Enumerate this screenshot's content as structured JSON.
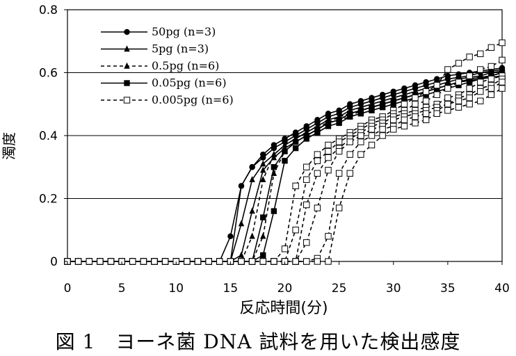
{
  "chart_data": {
    "type": "line",
    "title": "",
    "xlabel": "反応時間(分)",
    "ylabel": "濁度",
    "xlim": [
      0,
      40
    ],
    "ylim": [
      0,
      0.8
    ],
    "xticks": [
      0,
      5,
      10,
      15,
      20,
      25,
      30,
      35,
      40
    ],
    "yticks": [
      0,
      0.2,
      0.4,
      0.6,
      0.8
    ],
    "ytick_labels": [
      "0",
      "0.2",
      "0.4",
      "0.6",
      "0.8"
    ],
    "grid": "horizontal",
    "x_step": 1,
    "legend_position": "top-left",
    "series": [
      {
        "name": "50pg (n=3)",
        "marker": "circle",
        "line_style": "solid",
        "curves": [
          [
            0,
            0,
            0,
            0,
            0,
            0,
            0,
            0,
            0,
            0,
            0,
            0,
            0,
            0,
            0,
            0,
            0.24,
            0.3,
            0.34,
            0.37,
            0.39,
            0.41,
            0.43,
            0.45,
            0.47,
            0.48,
            0.5,
            0.51,
            0.52,
            0.53,
            0.54,
            0.55,
            0.56,
            0.57,
            0.58,
            0.59,
            0.595,
            0.6,
            0.605,
            0.61,
            0.615
          ],
          [
            0,
            0,
            0,
            0,
            0,
            0,
            0,
            0,
            0,
            0,
            0,
            0,
            0,
            0,
            0,
            0.08,
            0.24,
            0.3,
            0.33,
            0.36,
            0.38,
            0.4,
            0.42,
            0.44,
            0.46,
            0.47,
            0.49,
            0.5,
            0.51,
            0.52,
            0.53,
            0.54,
            0.55,
            0.56,
            0.57,
            0.58,
            0.585,
            0.59,
            0.6,
            0.605,
            0.61
          ]
        ]
      },
      {
        "name": "5pg (n=3)",
        "marker": "triangle",
        "line_style": "solid",
        "curves": [
          [
            0,
            0,
            0,
            0,
            0,
            0,
            0,
            0,
            0,
            0,
            0,
            0,
            0,
            0,
            0,
            0,
            0.12,
            0.26,
            0.31,
            0.34,
            0.37,
            0.39,
            0.41,
            0.43,
            0.45,
            0.46,
            0.48,
            0.49,
            0.5,
            0.51,
            0.52,
            0.53,
            0.54,
            0.55,
            0.56,
            0.57,
            0.58,
            0.585,
            0.59,
            0.6,
            0.605
          ],
          [
            0,
            0,
            0,
            0,
            0,
            0,
            0,
            0,
            0,
            0,
            0,
            0,
            0,
            0,
            0,
            0,
            0.02,
            0.16,
            0.29,
            0.33,
            0.36,
            0.38,
            0.4,
            0.42,
            0.44,
            0.45,
            0.47,
            0.48,
            0.49,
            0.5,
            0.51,
            0.52,
            0.53,
            0.54,
            0.55,
            0.56,
            0.57,
            0.58,
            0.585,
            0.59,
            0.6
          ]
        ]
      },
      {
        "name": "0.5pg (n=6)",
        "marker": "triangle",
        "line_style": "dashed",
        "curves": [
          [
            0,
            0,
            0,
            0,
            0,
            0,
            0,
            0,
            0,
            0,
            0,
            0,
            0,
            0,
            0,
            0,
            0,
            0.08,
            0.26,
            0.34,
            0.37,
            0.39,
            0.41,
            0.43,
            0.44,
            0.46,
            0.47,
            0.48,
            0.49,
            0.5,
            0.51,
            0.52,
            0.53,
            0.54,
            0.55,
            0.56,
            0.57,
            0.58,
            0.585,
            0.59,
            0.6
          ],
          [
            0,
            0,
            0,
            0,
            0,
            0,
            0,
            0,
            0,
            0,
            0,
            0,
            0,
            0,
            0,
            0,
            0,
            0,
            0.08,
            0.28,
            0.35,
            0.38,
            0.4,
            0.42,
            0.44,
            0.45,
            0.46,
            0.48,
            0.49,
            0.5,
            0.51,
            0.52,
            0.53,
            0.54,
            0.55,
            0.56,
            0.57,
            0.575,
            0.58,
            0.59,
            0.6
          ]
        ]
      },
      {
        "name": "0.05pg (n=6)",
        "marker": "square",
        "line_style": "solid",
        "curves": [
          [
            0,
            0,
            0,
            0,
            0,
            0,
            0,
            0,
            0,
            0,
            0,
            0,
            0,
            0,
            0,
            0,
            0,
            0,
            0.14,
            0.3,
            0.35,
            0.38,
            0.4,
            0.42,
            0.44,
            0.45,
            0.47,
            0.48,
            0.49,
            0.5,
            0.51,
            0.52,
            0.53,
            0.54,
            0.55,
            0.56,
            0.57,
            0.575,
            0.58,
            0.59,
            0.6
          ],
          [
            0,
            0,
            0,
            0,
            0,
            0,
            0,
            0,
            0,
            0.0,
            0,
            0,
            0,
            0,
            0,
            0,
            0,
            0,
            0.02,
            0.16,
            0.32,
            0.36,
            0.39,
            0.41,
            0.43,
            0.44,
            0.46,
            0.47,
            0.48,
            0.49,
            0.5,
            0.51,
            0.52,
            0.53,
            0.54,
            0.55,
            0.56,
            0.57,
            0.58,
            0.585,
            0.59
          ]
        ]
      },
      {
        "name": "0.005pg (n=6)",
        "marker": "square-open",
        "line_style": "dashed",
        "curves": [
          [
            0,
            0,
            0,
            0,
            0,
            0,
            0,
            0,
            0,
            0,
            0,
            0,
            0,
            0,
            0,
            0,
            0,
            0,
            0,
            0,
            0.04,
            0.24,
            0.3,
            0.34,
            0.37,
            0.39,
            0.41,
            0.43,
            0.45,
            0.46,
            0.48,
            0.5,
            0.52,
            0.54,
            0.56,
            0.61,
            0.63,
            0.65,
            0.66,
            0.68,
            0.695
          ],
          [
            0,
            0,
            0,
            0,
            0,
            0,
            0,
            0,
            0,
            0,
            0,
            0,
            0,
            0,
            0,
            0,
            0,
            0,
            0,
            0,
            0,
            0.1,
            0.26,
            0.32,
            0.35,
            0.38,
            0.4,
            0.42,
            0.44,
            0.45,
            0.47,
            0.48,
            0.5,
            0.51,
            0.53,
            0.55,
            0.57,
            0.59,
            0.61,
            0.62,
            0.64
          ],
          [
            0,
            0,
            0,
            0,
            0,
            0,
            0,
            0,
            0,
            0,
            0,
            0,
            0,
            0,
            0,
            0,
            0,
            0,
            0,
            0,
            0,
            0,
            0.18,
            0.28,
            0.33,
            0.36,
            0.39,
            0.41,
            0.43,
            0.44,
            0.46,
            0.47,
            0.48,
            0.49,
            0.5,
            0.52,
            0.53,
            0.55,
            0.57,
            0.58,
            0.59
          ],
          [
            0,
            0,
            0,
            0,
            0,
            0,
            0,
            0,
            0,
            0,
            0,
            0,
            0,
            0,
            0,
            0,
            0,
            0,
            0,
            0,
            0,
            0,
            0.06,
            0.17,
            0.29,
            0.35,
            0.38,
            0.4,
            0.42,
            0.43,
            0.45,
            0.46,
            0.47,
            0.48,
            0.49,
            0.5,
            0.52,
            0.53,
            0.55,
            0.56,
            0.58
          ],
          [
            0,
            0,
            0,
            0,
            0,
            0,
            0,
            0,
            0,
            0,
            0,
            0,
            0,
            0,
            0,
            0,
            0,
            0,
            0,
            0,
            0,
            0,
            0,
            0.01,
            0.08,
            0.28,
            0.34,
            0.38,
            0.4,
            0.42,
            0.43,
            0.45,
            0.46,
            0.47,
            0.48,
            0.5,
            0.51,
            0.52,
            0.54,
            0.55,
            0.57
          ],
          [
            0,
            0,
            0,
            0,
            0,
            0,
            0,
            0,
            0,
            0,
            0,
            0,
            0,
            0,
            0,
            0,
            0,
            0,
            0,
            0,
            0,
            0,
            0,
            0,
            0,
            0.17,
            0.28,
            0.34,
            0.37,
            0.4,
            0.42,
            0.43,
            0.44,
            0.45,
            0.47,
            0.48,
            0.49,
            0.5,
            0.51,
            0.53,
            0.55
          ]
        ]
      }
    ]
  },
  "figure_caption": "図 1　ヨーネ菌 DNA 試料を用いた検出感度"
}
